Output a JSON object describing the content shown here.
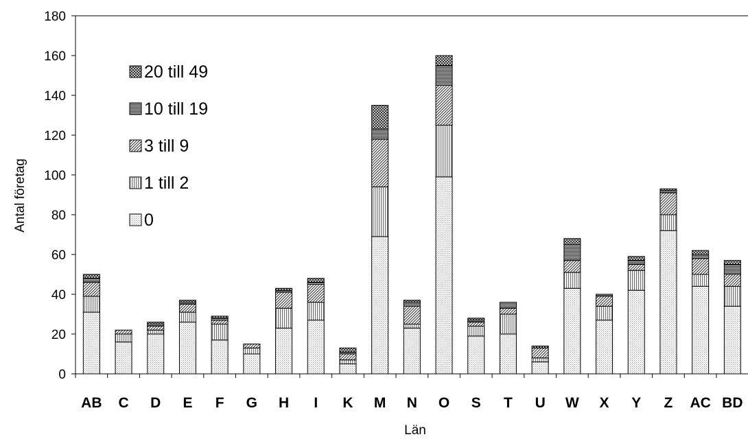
{
  "chart_data": {
    "type": "bar",
    "stacked": true,
    "title": "",
    "xlabel": "Län",
    "ylabel": "Antal företag",
    "ylim": [
      0,
      180
    ],
    "yticks": [
      0,
      20,
      40,
      60,
      80,
      100,
      120,
      140,
      160,
      180
    ],
    "grid": false,
    "legend_position": "top-left",
    "categories": [
      "AB",
      "C",
      "D",
      "E",
      "F",
      "G",
      "H",
      "I",
      "K",
      "M",
      "N",
      "O",
      "S",
      "T",
      "U",
      "W",
      "X",
      "Y",
      "Z",
      "AC",
      "BD"
    ],
    "series": [
      {
        "name": "0",
        "pattern": "fine-dots",
        "values": [
          31,
          16,
          20,
          26,
          17,
          10,
          23,
          27,
          5,
          69,
          23,
          99,
          19,
          20,
          6,
          43,
          27,
          42,
          72,
          44,
          34
        ]
      },
      {
        "name": "1 till 2",
        "pattern": "vertical-lines",
        "values": [
          8,
          4,
          2,
          5,
          8,
          3,
          10,
          9,
          2,
          25,
          2,
          26,
          5,
          10,
          2,
          8,
          7,
          10,
          8,
          6,
          10
        ]
      },
      {
        "name": "3 till 9",
        "pattern": "diagonal-lines",
        "values": [
          7,
          2,
          2,
          4,
          2,
          2,
          8,
          9,
          3,
          24,
          9,
          20,
          2,
          3,
          5,
          6,
          5,
          3,
          11,
          8,
          6
        ]
      },
      {
        "name": "10  till 19",
        "pattern": "horizontal-lines",
        "values": [
          2,
          0,
          1,
          1,
          1,
          0,
          1,
          1,
          1,
          5,
          2,
          10,
          1,
          3,
          0,
          8,
          1,
          2,
          1,
          2,
          5
        ]
      },
      {
        "name": "20 till 49",
        "pattern": "crosshatch",
        "values": [
          2,
          0,
          1,
          1,
          1,
          0,
          1,
          2,
          2,
          12,
          1,
          5,
          1,
          0,
          1,
          3,
          0,
          2,
          1,
          2,
          2
        ]
      }
    ]
  }
}
